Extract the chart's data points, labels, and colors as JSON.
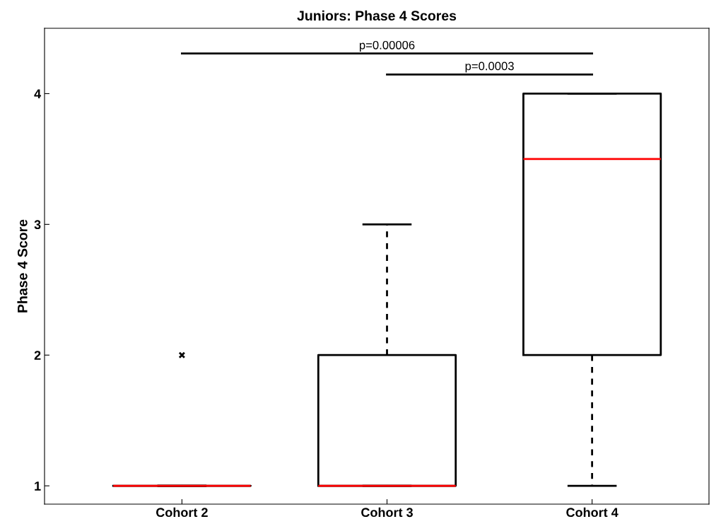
{
  "chart_data": {
    "type": "box",
    "title": "Juniors: Phase 4 Scores",
    "ylabel": "Phase 4 Score",
    "categories": [
      "Cohort 2",
      "Cohort 3",
      "Cohort 4"
    ],
    "series": [
      {
        "color": "#000000",
        "boxes": [
          {
            "low": 1,
            "q1": 1,
            "median": 1,
            "q3": 1,
            "high": 1,
            "outliers": [
              2
            ]
          },
          {
            "low": 1,
            "q1": 1,
            "median": 1,
            "q3": 2,
            "high": 3
          },
          {
            "low": 1,
            "q1": 2,
            "median": 3.5,
            "q3": 4,
            "high": 4
          }
        ]
      }
    ],
    "ylim": [
      0.86,
      4.5
    ],
    "yticks": [
      1,
      2,
      3,
      4
    ],
    "annotations": [
      "p=0.00006",
      "p=0.0003"
    ]
  }
}
